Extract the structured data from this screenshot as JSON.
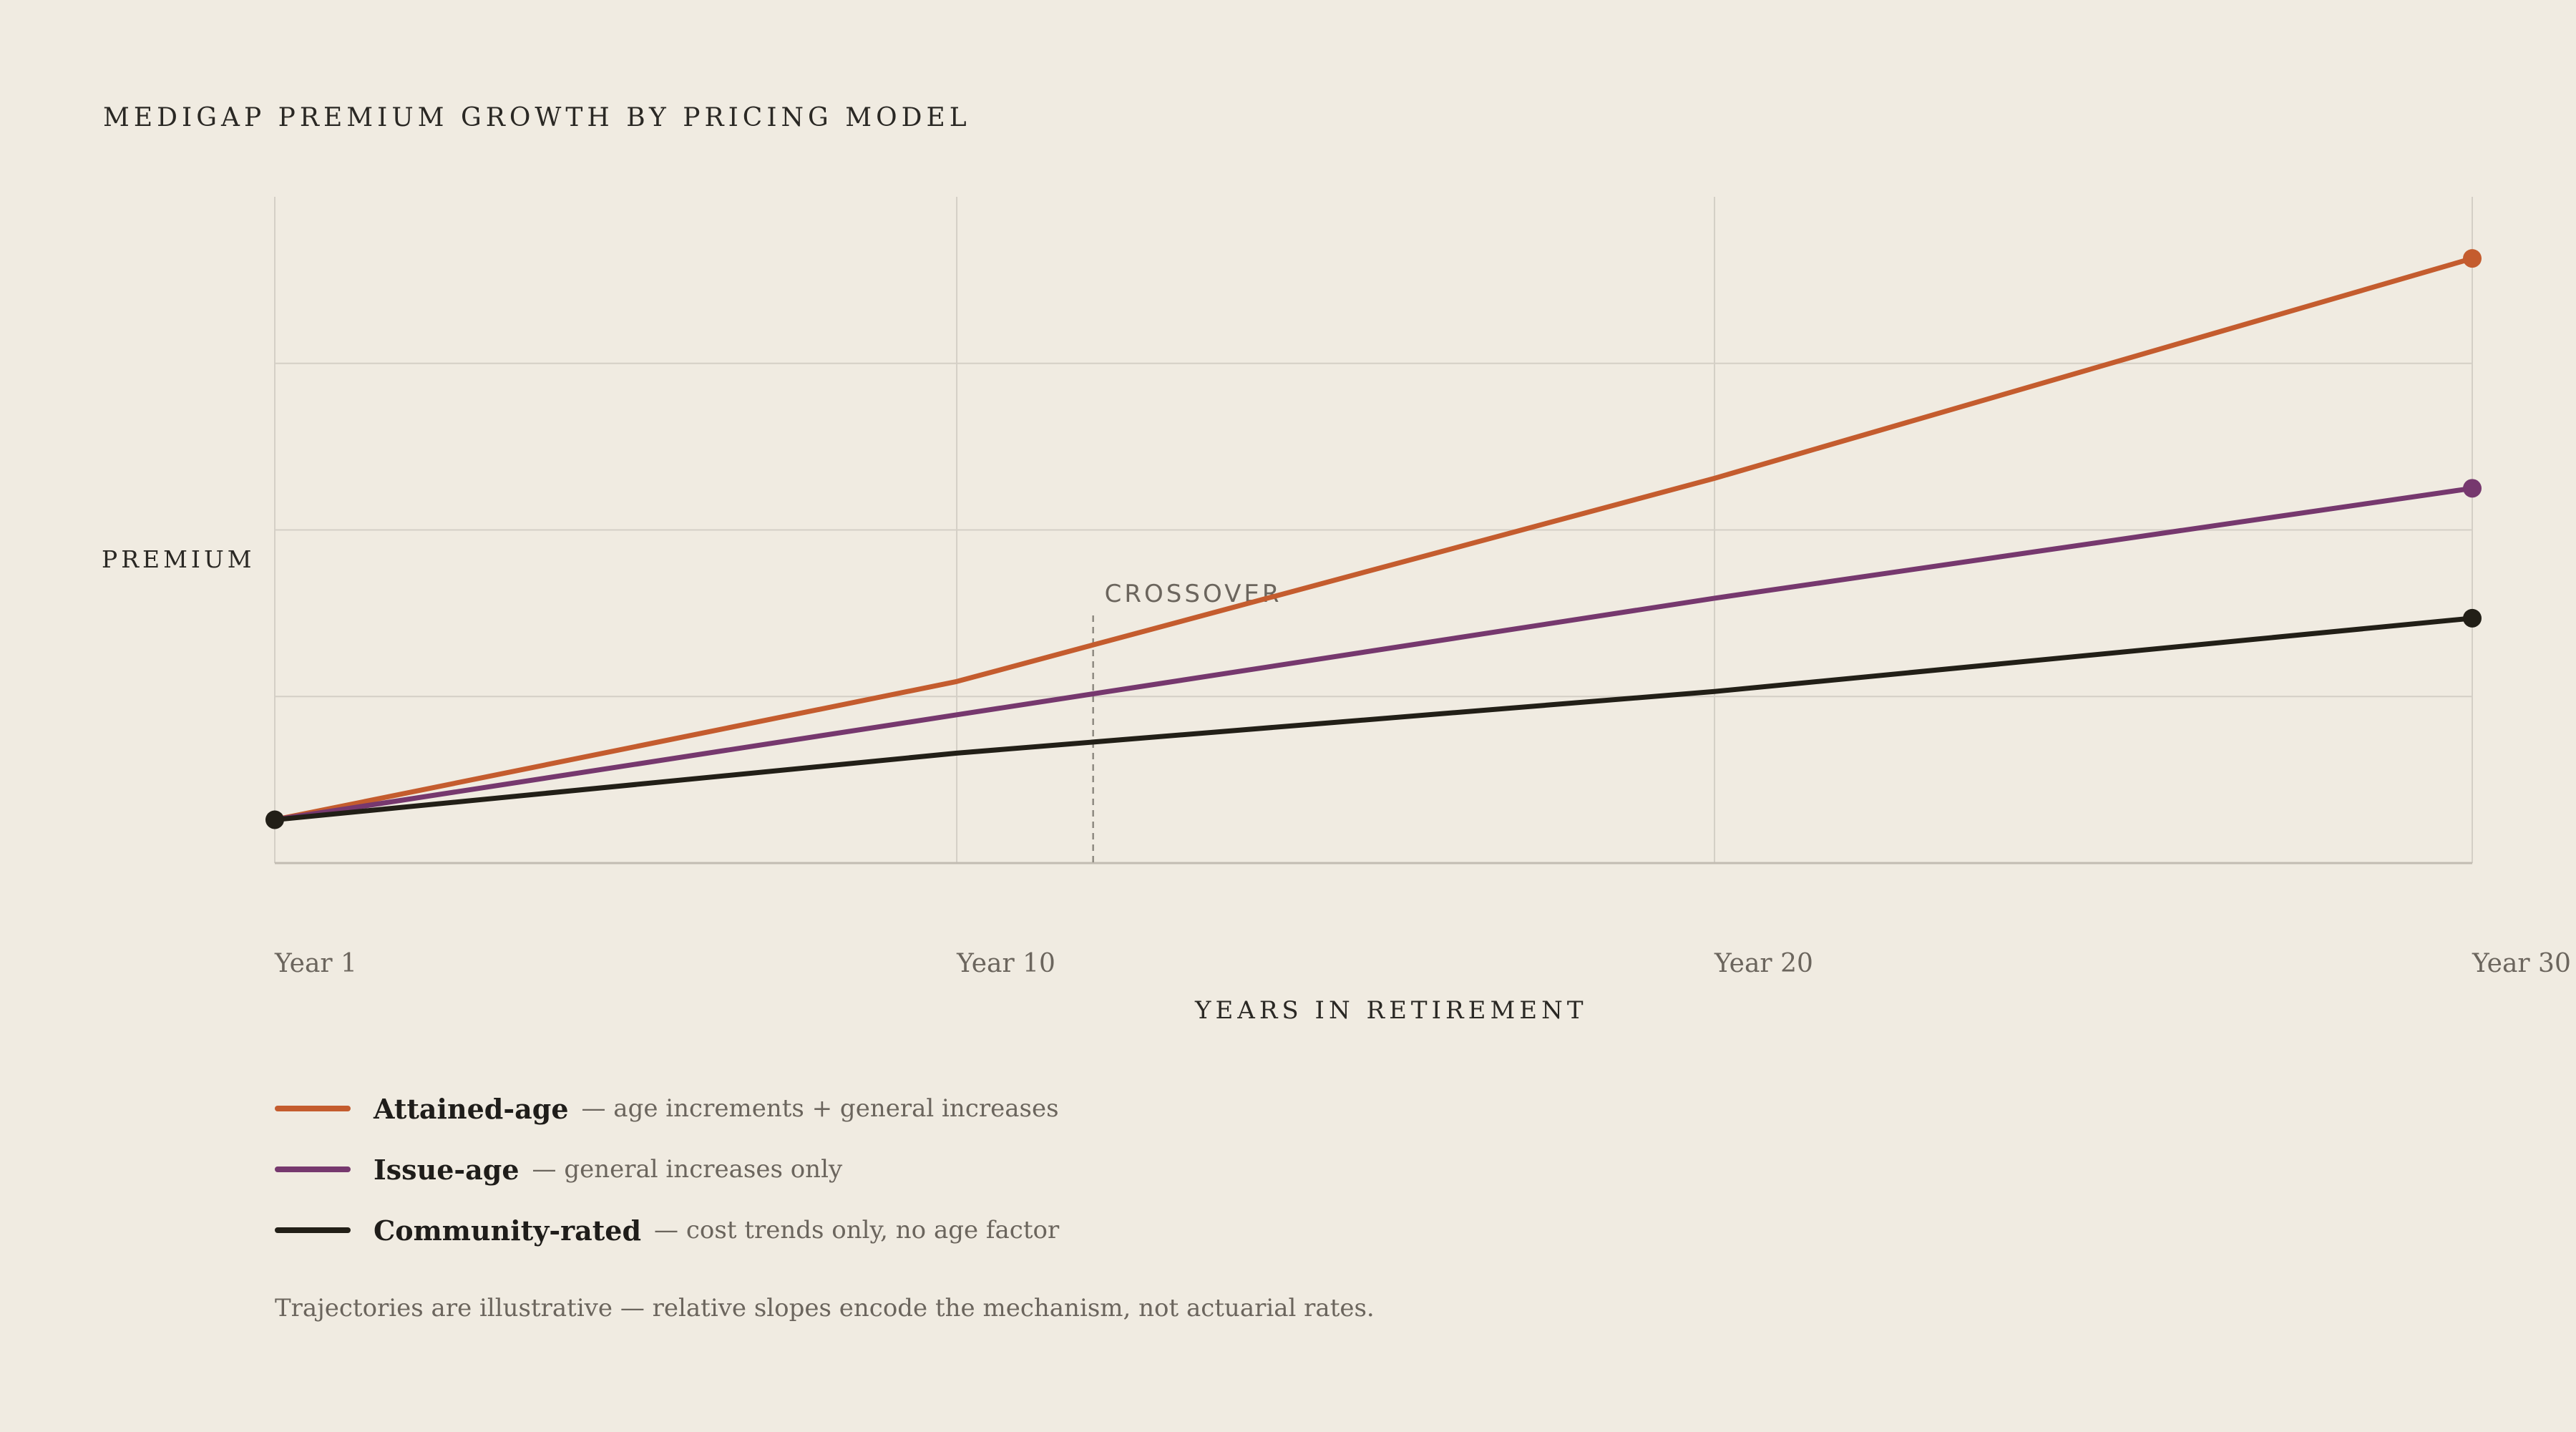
{
  "header": {
    "title": "MEDIGAP PREMIUM GROWTH BY PRICING MODEL"
  },
  "colors": {
    "background": "#f0ebe1",
    "grid": "#d4cfc6",
    "attained_age": "#c45c2e",
    "issue_age": "#76386e",
    "community_rated": "#221f17",
    "crossover_line": "#8e8981"
  },
  "chart_data": {
    "type": "line",
    "title": "MEDIGAP PREMIUM GROWTH BY PRICING MODEL",
    "xlabel": "YEARS IN RETIREMENT",
    "ylabel": "PREMIUM",
    "x": [
      1,
      10,
      20,
      30
    ],
    "x_ticks": [
      {
        "value": 1,
        "label": "Year 1"
      },
      {
        "value": 10,
        "label": "Year 10"
      },
      {
        "value": 20,
        "label": "Year 20"
      },
      {
        "value": 30,
        "label": "Year 30"
      }
    ],
    "xlim": [
      1,
      30
    ],
    "ylim": [
      0,
      4
    ],
    "y_gridlines": [
      1,
      2,
      3
    ],
    "y_tick_labels": false,
    "grid": true,
    "series": [
      {
        "name": "Attained-age",
        "description": "— age increments + general increases",
        "color": "#c45c2e",
        "values": [
          0.26,
          1.09,
          2.31,
          3.63
        ]
      },
      {
        "name": "Issue-age",
        "description": "— general increases only",
        "color": "#76386e",
        "values": [
          0.26,
          0.89,
          1.59,
          2.25
        ]
      },
      {
        "name": "Community-rated",
        "description": "— cost trends only, no age factor",
        "color": "#221f17",
        "values": [
          0.26,
          0.66,
          1.03,
          1.47
        ]
      }
    ],
    "annotations": [
      {
        "text": "CROSSOVER",
        "x": 11.8
      }
    ],
    "legend_position": "bottom"
  },
  "footnote": "Trajectories are illustrative — relative slopes encode the mechanism, not actuarial rates."
}
